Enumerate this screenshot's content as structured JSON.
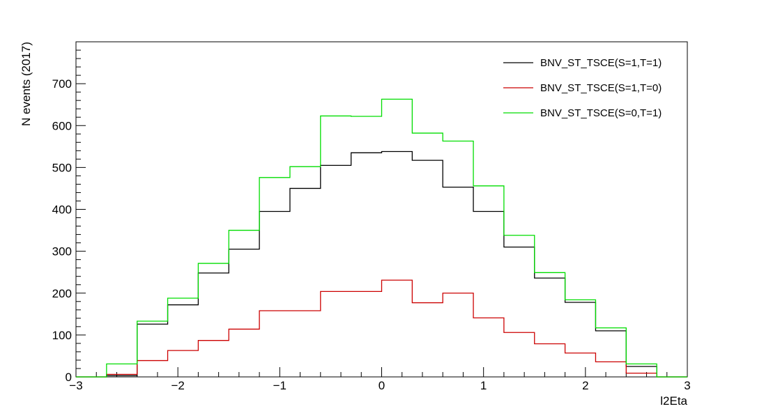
{
  "chart_data": {
    "type": "line",
    "style": "step-histogram",
    "xlabel": "l2Eta",
    "ylabel": "N events (2017)",
    "xlim": [
      -3,
      3
    ],
    "ylim": [
      0,
      800
    ],
    "x_ticks": [
      -3,
      -2,
      -1,
      0,
      1,
      2,
      3
    ],
    "x_tick_labels": [
      "−3",
      "−2",
      "−1",
      "0",
      "1",
      "2",
      "3"
    ],
    "y_ticks": [
      0,
      100,
      200,
      300,
      400,
      500,
      600,
      700
    ],
    "y_tick_labels": [
      "0",
      "100",
      "200",
      "300",
      "400",
      "500",
      "600",
      "700"
    ],
    "bin_edges": [
      -3.0,
      -2.7,
      -2.4,
      -2.1,
      -1.8,
      -1.5,
      -1.2,
      -0.9,
      -0.6,
      -0.3,
      0.0,
      0.3,
      0.6,
      0.9,
      1.2,
      1.5,
      1.8,
      2.1,
      2.4,
      2.7,
      3.0
    ],
    "legend_position": "top-right",
    "grid": false,
    "series": [
      {
        "name": "BNV_ST_TSCE(S=1,T=1)",
        "color": "#000000",
        "values": [
          0,
          3,
          126,
          172,
          248,
          305,
          395,
          450,
          505,
          535,
          538,
          517,
          453,
          395,
          310,
          236,
          178,
          110,
          25,
          0
        ]
      },
      {
        "name": "BNV_ST_TSCE(S=1,T=0)",
        "color": "#cc0000",
        "values": [
          0,
          6,
          39,
          63,
          87,
          114,
          158,
          158,
          204,
          204,
          231,
          177,
          200,
          141,
          106,
          79,
          57,
          36,
          9,
          0
        ]
      },
      {
        "name": "BNV_ST_TSCE(S=0,T=1)",
        "color": "#00dd00",
        "values": [
          0,
          31,
          133,
          188,
          271,
          350,
          476,
          502,
          623,
          622,
          663,
          582,
          563,
          456,
          338,
          249,
          184,
          117,
          31,
          0
        ]
      }
    ]
  }
}
